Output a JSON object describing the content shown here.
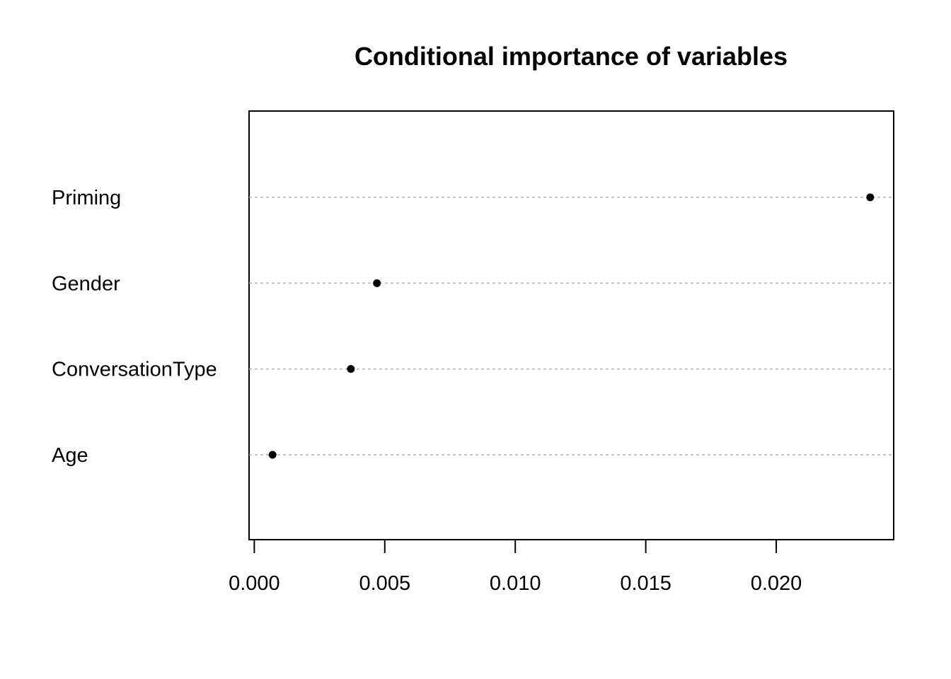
{
  "chart_data": {
    "type": "scatter",
    "title": "Conditional importance of variables",
    "xlabel": "",
    "ylabel": "",
    "categories": [
      "Age",
      "ConversationType",
      "Gender",
      "Priming"
    ],
    "values": [
      0.0007,
      0.0037,
      0.0047,
      0.0236
    ],
    "x_ticks": [
      "0.000",
      "0.005",
      "0.010",
      "0.015",
      "0.020"
    ],
    "xlim": [
      -0.0002,
      0.0245
    ],
    "grid": "dotted horizontal guide lines per variable",
    "legend": "none",
    "point_color": "#000000",
    "guide_color": "#b3b3b3"
  }
}
